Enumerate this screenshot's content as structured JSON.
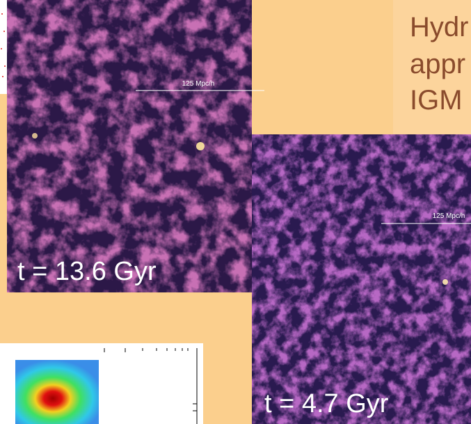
{
  "slide": {
    "title_lines": [
      "Hydr",
      "appr",
      "IGM"
    ],
    "panels": [
      {
        "scale_label": "125 Mpc/h",
        "time_label": "t = 13.6 Gyr"
      },
      {
        "scale_label": "125 Mpc/h",
        "time_label": "t = 4.7 Gyr"
      }
    ]
  }
}
